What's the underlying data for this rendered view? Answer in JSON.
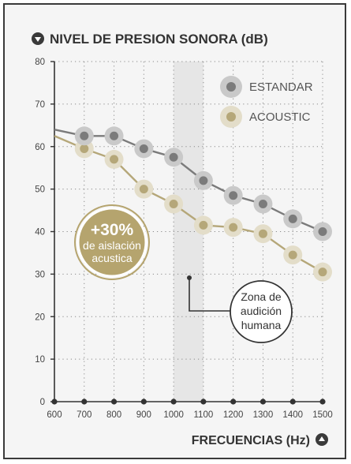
{
  "chart_data": {
    "type": "line",
    "title": "NIVEL DE PRESION SONORA (dB)",
    "xlabel": "FRECUENCIAS (Hz)",
    "ylabel": "",
    "x": [
      700,
      800,
      900,
      1000,
      1100,
      1200,
      1300,
      1400,
      1500
    ],
    "x_ticks": [
      600,
      700,
      800,
      900,
      1000,
      1100,
      1200,
      1300,
      1400,
      1500
    ],
    "y_ticks": [
      0,
      10,
      20,
      30,
      40,
      50,
      60,
      70,
      80
    ],
    "xlim": [
      600,
      1500
    ],
    "ylim": [
      0,
      80
    ],
    "grid": true,
    "legend_position": "top-right",
    "series": [
      {
        "name": "ESTANDAR",
        "color": "#7b7b7b",
        "marker_outer": "#c9c9c9",
        "start_value": 64,
        "values": [
          62.5,
          62.5,
          59.5,
          57.5,
          52,
          48.5,
          46.5,
          43,
          40
        ]
      },
      {
        "name": "ACOUSTIC",
        "color": "#b5a779",
        "marker_outer": "#e3ddc9",
        "start_value": 62.5,
        "values": [
          59.5,
          57,
          50,
          46.5,
          41.5,
          41,
          39.5,
          34.5,
          30.5
        ]
      }
    ],
    "highlight_band": {
      "from": 1000,
      "to": 1100,
      "color": "#e6e6e6"
    },
    "badge": {
      "line1": "+30%",
      "line2": "de aislación",
      "line3": "acustica",
      "color": "#b5a46e"
    },
    "callout": {
      "lines": [
        "Zona de",
        "audición",
        "humana"
      ]
    }
  }
}
